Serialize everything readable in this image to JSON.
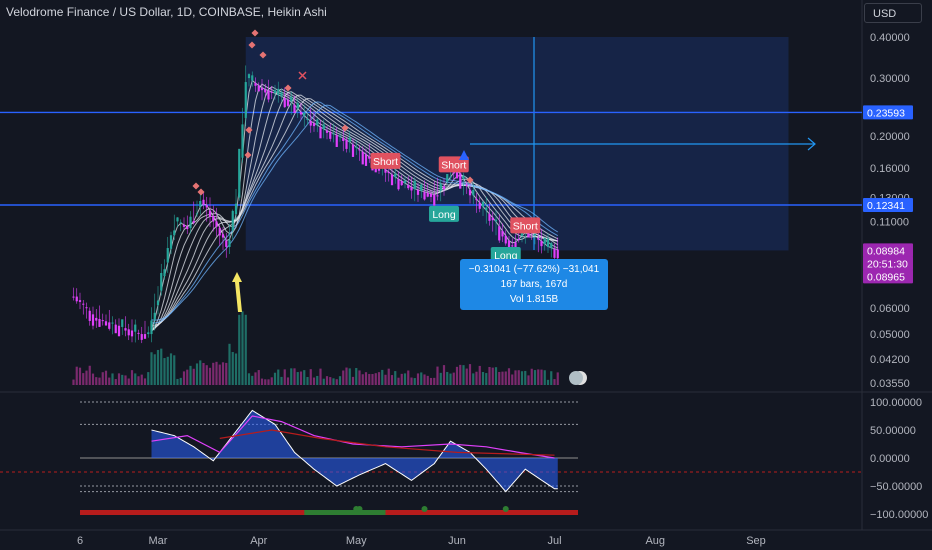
{
  "header": {
    "title": "Velodrome Finance / US Dollar, 1D, COINBASE, Heikin Ashi",
    "currency": "USD"
  },
  "measurement": {
    "line1": "−0.31041 (−77.62%) −31,041",
    "line2": "167 bars, 167d",
    "line3": "Vol 1.815B"
  },
  "signals": [
    {
      "label": "Short",
      "date": "2024-05-10",
      "price": 0.168,
      "color": "#e05260"
    },
    {
      "label": "Short",
      "date": "2024-05-31",
      "price": 0.164,
      "color": "#e05260"
    },
    {
      "label": "Long",
      "date": "2024-05-28",
      "price": 0.116,
      "color": "#26a69a"
    },
    {
      "label": "Short",
      "date": "2024-06-22",
      "price": 0.107,
      "color": "#e05260"
    },
    {
      "label": "Long",
      "date": "2024-06-16",
      "price": 0.087,
      "color": "#26a69a"
    }
  ],
  "chart_data": [
    {
      "type": "candlestick",
      "scale": "log",
      "ylim": [
        0.0355,
        0.42
      ],
      "x_ticks": [
        "6",
        "Mar",
        "Apr",
        "May",
        "Jun",
        "Jul",
        "Aug",
        "Sep"
      ],
      "x_tick_dates": [
        "2024-02-06",
        "2024-03-01",
        "2024-04-01",
        "2024-05-01",
        "2024-06-01",
        "2024-07-01",
        "2024-08-01",
        "2024-09-01"
      ],
      "y_ticks": [
        "0.40000",
        "0.30000",
        "0.20000",
        "0.16000",
        "0.13000",
        "0.11000",
        "0.06000",
        "0.05000",
        "0.04200",
        "0.03550"
      ],
      "y_tick_values": [
        0.4,
        0.3,
        0.2,
        0.16,
        0.13,
        0.11,
        0.06,
        0.05,
        0.042,
        0.0355
      ],
      "price_labels": [
        {
          "value": "0.23593",
          "color": "#2962ff"
        },
        {
          "value": "0.12341",
          "color": "#2962ff"
        },
        {
          "value": "0.08984",
          "color": "#9c27b0"
        },
        {
          "value": "20:51:30",
          "color": "#9c27b0"
        },
        {
          "value": "0.08965",
          "color": "#9c27b0"
        }
      ],
      "horizontal_lines": [
        0.23593,
        0.12341
      ],
      "candle_colors": {
        "up": "#26a69a",
        "down": "#e040fb"
      },
      "series": [
        {
          "name": "",
          "points": [
            [
              "2024-02-04",
              0.065
            ],
            [
              "2024-02-10",
              0.056
            ],
            [
              "2024-02-17",
              0.053
            ],
            [
              "2024-02-24",
              0.05
            ],
            [
              "2024-02-27",
              0.05
            ],
            [
              "2024-03-02",
              0.075
            ],
            [
              "2024-03-06",
              0.11
            ],
            [
              "2024-03-10",
              0.105
            ],
            [
              "2024-03-14",
              0.128
            ],
            [
              "2024-03-18",
              0.11
            ],
            [
              "2024-03-22",
              0.092
            ],
            [
              "2024-03-25",
              0.13
            ],
            [
              "2024-03-28",
              0.3
            ],
            [
              "2024-04-01",
              0.28
            ],
            [
              "2024-04-05",
              0.27
            ],
            [
              "2024-04-10",
              0.255
            ],
            [
              "2024-04-15",
              0.225
            ],
            [
              "2024-04-20",
              0.21
            ],
            [
              "2024-04-27",
              0.195
            ],
            [
              "2024-05-05",
              0.17
            ],
            [
              "2024-05-12",
              0.15
            ],
            [
              "2024-05-18",
              0.138
            ],
            [
              "2024-05-25",
              0.132
            ],
            [
              "2024-05-31",
              0.16
            ],
            [
              "2024-06-05",
              0.132
            ],
            [
              "2024-06-12",
              0.11
            ],
            [
              "2024-06-17",
              0.093
            ],
            [
              "2024-06-22",
              0.104
            ],
            [
              "2024-06-28",
              0.092
            ],
            [
              "2024-07-02",
              0.0898
            ]
          ]
        }
      ]
    },
    {
      "type": "line",
      "y_ticks": [
        "100.00000",
        "50.00000",
        "0.00000",
        "−50.00000",
        "−100.00000"
      ],
      "y_tick_values": [
        100,
        50,
        0,
        -50,
        -100
      ],
      "ylim": [
        -100,
        100
      ],
      "guide_levels": [
        100,
        60,
        0,
        -50,
        -60
      ],
      "series": [
        {
          "name": "",
          "color": "#2962ff",
          "points": [
            [
              "2024-02-28",
              50
            ],
            [
              "2024-03-06",
              40
            ],
            [
              "2024-03-12",
              20
            ],
            [
              "2024-03-18",
              -5
            ],
            [
              "2024-03-24",
              40
            ],
            [
              "2024-03-30",
              85
            ],
            [
              "2024-04-06",
              60
            ],
            [
              "2024-04-12",
              10
            ],
            [
              "2024-04-18",
              -20
            ],
            [
              "2024-04-25",
              -50
            ],
            [
              "2024-05-02",
              -30
            ],
            [
              "2024-05-10",
              -10
            ],
            [
              "2024-05-18",
              -40
            ],
            [
              "2024-05-25",
              -10
            ],
            [
              "2024-05-30",
              30
            ],
            [
              "2024-06-05",
              10
            ],
            [
              "2024-06-10",
              -20
            ],
            [
              "2024-06-16",
              -60
            ],
            [
              "2024-06-22",
              -20
            ],
            [
              "2024-07-01",
              -55
            ]
          ]
        },
        {
          "name": "",
          "color": "#e040fb",
          "points": [
            [
              "2024-02-28",
              30
            ],
            [
              "2024-03-10",
              40
            ],
            [
              "2024-03-20",
              10
            ],
            [
              "2024-03-30",
              75
            ],
            [
              "2024-04-08",
              65
            ],
            [
              "2024-04-18",
              40
            ],
            [
              "2024-04-30",
              25
            ],
            [
              "2024-05-15",
              20
            ],
            [
              "2024-05-30",
              25
            ],
            [
              "2024-06-10",
              20
            ],
            [
              "2024-06-20",
              10
            ],
            [
              "2024-07-01",
              0
            ]
          ]
        },
        {
          "name": "",
          "color": "#b71c1c",
          "points": [
            [
              "2024-03-20",
              35
            ],
            [
              "2024-04-05",
              50
            ],
            [
              "2024-04-20",
              35
            ],
            [
              "2024-05-10",
              20
            ],
            [
              "2024-06-01",
              10
            ],
            [
              "2024-07-01",
              5
            ]
          ]
        }
      ]
    }
  ]
}
